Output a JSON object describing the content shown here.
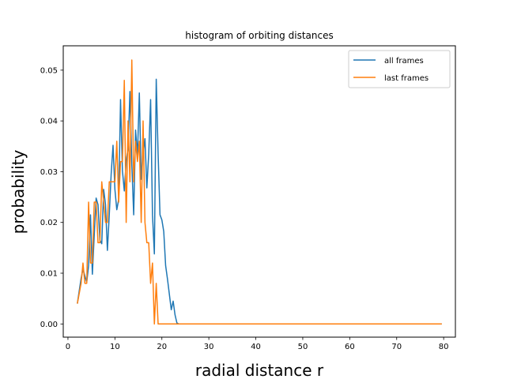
{
  "chart_data": {
    "type": "line",
    "title": "histogram of orbiting distances",
    "xlabel": "radial distance r",
    "ylabel": "probability",
    "xlim": [
      -1.0,
      82.5
    ],
    "ylim": [
      -0.0026,
      0.0548
    ],
    "xticks": [
      0,
      10,
      20,
      30,
      40,
      50,
      60,
      70,
      80
    ],
    "yticks": [
      0.0,
      0.01,
      0.02,
      0.03,
      0.04,
      0.05
    ],
    "ytick_labels": [
      "0.00",
      "0.01",
      "0.02",
      "0.03",
      "0.04",
      "0.05"
    ],
    "grid": false,
    "legend_position": "top-right",
    "series": [
      {
        "name": "all frames",
        "color": "#1f77b4",
        "x": [
          2.0,
          2.8,
          3.2,
          3.6,
          4.0,
          4.4,
          4.8,
          5.2,
          5.6,
          6.0,
          6.4,
          6.8,
          7.2,
          7.6,
          8.0,
          8.4,
          8.8,
          9.2,
          9.6,
          10.0,
          10.4,
          10.8,
          11.2,
          11.6,
          12.0,
          12.4,
          12.8,
          13.2,
          13.6,
          14.0,
          14.4,
          14.8,
          15.2,
          15.6,
          16.0,
          16.4,
          16.8,
          17.2,
          17.6,
          18.0,
          18.4,
          18.8,
          19.2,
          19.6,
          20.0,
          20.4,
          20.8,
          21.2,
          21.6,
          22.0,
          22.4,
          22.8,
          23.2,
          23.6,
          24.0,
          24.4,
          25.0,
          30.0,
          40.0,
          50.0,
          60.0,
          70.0,
          79.6
        ],
        "y": [
          0.004,
          0.009,
          0.0108,
          0.0095,
          0.0082,
          0.0115,
          0.0215,
          0.0098,
          0.0175,
          0.0248,
          0.0235,
          0.0165,
          0.0158,
          0.0265,
          0.0235,
          0.0145,
          0.0215,
          0.0295,
          0.0352,
          0.0265,
          0.0225,
          0.0245,
          0.0442,
          0.0302,
          0.0262,
          0.0322,
          0.0345,
          0.0458,
          0.0315,
          0.0215,
          0.0382,
          0.0332,
          0.0455,
          0.0285,
          0.0335,
          0.0365,
          0.0268,
          0.0335,
          0.0442,
          0.0215,
          0.0138,
          0.0482,
          0.0335,
          0.0215,
          0.0205,
          0.0182,
          0.0115,
          0.0088,
          0.0058,
          0.0028,
          0.0045,
          0.0018,
          0.0002,
          0.0,
          0.0,
          0.0,
          0.0,
          0.0,
          0.0,
          0.0,
          0.0,
          0.0,
          0.0
        ]
      },
      {
        "name": "last frames",
        "color": "#ff7f0e",
        "x": [
          2.0,
          2.8,
          3.2,
          3.6,
          4.0,
          4.4,
          4.8,
          5.2,
          5.6,
          6.0,
          6.4,
          6.8,
          7.2,
          7.6,
          8.0,
          8.4,
          8.8,
          9.2,
          9.6,
          10.0,
          10.4,
          10.8,
          11.2,
          11.6,
          12.0,
          12.4,
          12.8,
          13.2,
          13.6,
          14.0,
          14.4,
          14.8,
          15.2,
          15.6,
          16.0,
          16.4,
          16.8,
          17.2,
          17.6,
          18.0,
          18.4,
          18.8,
          19.2,
          19.6,
          20.0,
          20.4,
          20.8,
          21.2,
          21.6,
          22.0,
          22.4,
          22.8,
          23.2,
          23.6,
          24.0,
          24.4,
          25.0,
          30.0,
          40.0,
          50.0,
          60.0,
          70.0,
          79.6
        ],
        "y": [
          0.004,
          0.008,
          0.012,
          0.008,
          0.008,
          0.024,
          0.012,
          0.012,
          0.024,
          0.024,
          0.016,
          0.016,
          0.028,
          0.024,
          0.02,
          0.02,
          0.028,
          0.028,
          0.028,
          0.028,
          0.036,
          0.024,
          0.032,
          0.032,
          0.048,
          0.02,
          0.04,
          0.028,
          0.052,
          0.028,
          0.036,
          0.032,
          0.036,
          0.02,
          0.04,
          0.02,
          0.016,
          0.016,
          0.008,
          0.012,
          0.0,
          0.008,
          0.0,
          0.0,
          0.0,
          0.0,
          0.0,
          0.0,
          0.0,
          0.0,
          0.0,
          0.0,
          0.0,
          0.0,
          0.0,
          0.0,
          0.0,
          0.0,
          0.0,
          0.0,
          0.0,
          0.0,
          0.0
        ]
      }
    ]
  }
}
